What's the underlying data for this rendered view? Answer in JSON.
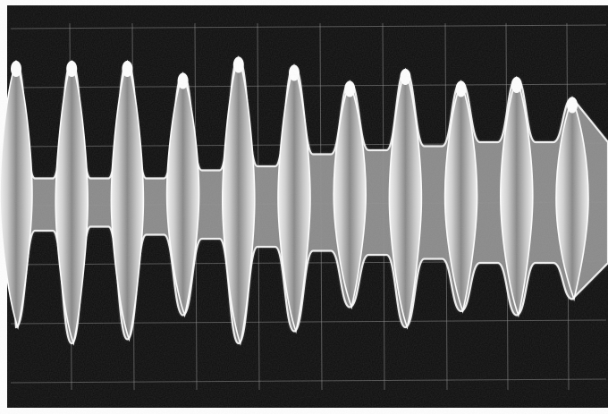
{
  "photo": {
    "subject": "oscilloscope-trace",
    "colors": {
      "screen": "#0a0a0a",
      "border": "#ffffff",
      "graticule": "#8f8f8f",
      "trace": "#d8d8d8",
      "trace_core": "#8a8a8a",
      "trace_hot": "#ffffff"
    },
    "envelope": {
      "lobes": [
        {
          "top": 0.14,
          "bottom": 0.8
        },
        {
          "top": 0.14,
          "bottom": 0.84
        },
        {
          "top": 0.14,
          "bottom": 0.83
        },
        {
          "top": 0.17,
          "bottom": 0.77
        },
        {
          "top": 0.13,
          "bottom": 0.84
        },
        {
          "top": 0.15,
          "bottom": 0.81
        },
        {
          "top": 0.19,
          "bottom": 0.75
        },
        {
          "top": 0.16,
          "bottom": 0.8
        },
        {
          "top": 0.19,
          "bottom": 0.76
        },
        {
          "top": 0.18,
          "bottom": 0.77
        },
        {
          "top": 0.23,
          "bottom": 0.73
        }
      ],
      "troughs": [
        {
          "top": 0.43,
          "bottom": 0.56
        },
        {
          "top": 0.43,
          "bottom": 0.55
        },
        {
          "top": 0.43,
          "bottom": 0.57
        },
        {
          "top": 0.41,
          "bottom": 0.58
        },
        {
          "top": 0.4,
          "bottom": 0.6
        },
        {
          "top": 0.37,
          "bottom": 0.61
        },
        {
          "top": 0.36,
          "bottom": 0.62
        },
        {
          "top": 0.35,
          "bottom": 0.63
        },
        {
          "top": 0.34,
          "bottom": 0.64
        },
        {
          "top": 0.34,
          "bottom": 0.64
        }
      ]
    }
  }
}
